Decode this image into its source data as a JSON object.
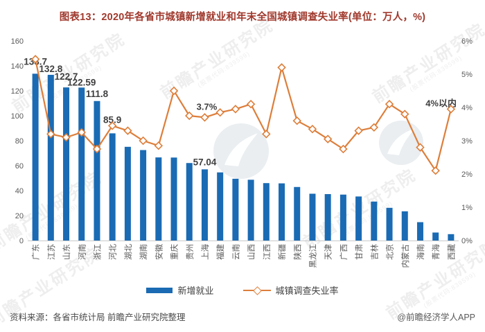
{
  "title": "图表13：2020年各省市城镇新增就业和年末全国城镇调查失业率(单位：万人，%)",
  "footer": {
    "source": "资料来源：各省市统计局 前瞻产业研究院整理",
    "credit": "@前瞻经济学人APP"
  },
  "watermark": {
    "text": "前瞻产业研究院",
    "sub": "(股票代码:839599)"
  },
  "legend": [
    {
      "label": "新增就业",
      "swatch": "bar",
      "color": "#1A6BB4"
    },
    {
      "label": "城镇调查失业率",
      "swatch": "line-diamond",
      "color": "#DD7E3A"
    }
  ],
  "colors": {
    "bar": "#1A6BB4",
    "line": "#DD7E3A",
    "title": "#A0392D",
    "axis_text": "#595959",
    "value_label": "#3F3F3F",
    "axis_line": "#C9C9C9"
  },
  "chart_data": {
    "type": "bar",
    "subtype": "bar+line combo, dual axis",
    "title": "2020年各省市城镇新增就业和年末全国城镇调查失业率",
    "units": {
      "bars": "万人",
      "line": "%"
    },
    "categories": [
      "广东",
      "江苏",
      "山东",
      "河南",
      "浙江",
      "河北",
      "湖北",
      "湖南",
      "安徽",
      "重庆",
      "贵州",
      "上海",
      "福建",
      "云南",
      "山西",
      "江西",
      "新疆",
      "陕西",
      "黑龙江",
      "天津",
      "广西",
      "甘肃",
      "吉林",
      "北京",
      "内蒙古",
      "海南",
      "青海",
      "西藏"
    ],
    "series": [
      {
        "name": "新增就业",
        "type": "bar",
        "axis": "left",
        "color": "#1A6BB4",
        "values": [
          133.7,
          132.8,
          122.7,
          122.59,
          111.8,
          85.9,
          75.1,
          72.5,
          66.6,
          66.5,
          62.1,
          57.04,
          54.6,
          49.5,
          48.7,
          46.0,
          45.8,
          42.9,
          37.5,
          37.2,
          36.8,
          35.3,
          31.2,
          26.2,
          23.4,
          14.7,
          6.4,
          5.1
        ],
        "shown_labels": {
          "0": "133.7",
          "1": "132.8",
          "2": "122.7",
          "3": "122.59",
          "4": "111.8",
          "5": "85.9",
          "11": "57.04"
        }
      },
      {
        "name": "城镇调查失业率",
        "type": "line",
        "axis": "right",
        "color": "#DD7E3A",
        "values": [
          5.45,
          3.2,
          3.1,
          3.25,
          2.75,
          3.45,
          3.3,
          3.0,
          2.85,
          4.5,
          3.75,
          3.7,
          3.85,
          3.95,
          4.1,
          3.2,
          5.2,
          3.6,
          3.35,
          3.05,
          2.75,
          3.3,
          3.4,
          4.1,
          3.8,
          2.8,
          2.1,
          3.95
        ],
        "shown_labels": {
          "11": "3.7%",
          "27": "4%以内"
        }
      }
    ],
    "left_axis": {
      "min": 0,
      "max": 160,
      "step": 20
    },
    "right_axis": {
      "min": 0,
      "max": 6,
      "step": 1,
      "suffix": "%"
    },
    "gridlines": false,
    "legend_position": "bottom",
    "x_labels_rotated": true
  }
}
